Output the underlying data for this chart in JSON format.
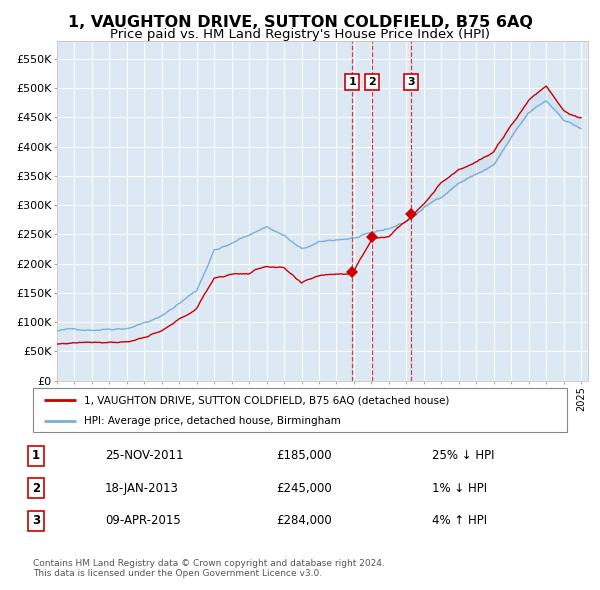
{
  "title": "1, VAUGHTON DRIVE, SUTTON COLDFIELD, B75 6AQ",
  "subtitle": "Price paid vs. HM Land Registry's House Price Index (HPI)",
  "title_fontsize": 11.5,
  "subtitle_fontsize": 9.5,
  "background_color": "#ffffff",
  "plot_bg_color": "#dce9f5",
  "grid_color": "#ffffff",
  "red_line_color": "#cc0000",
  "blue_line_color": "#7bafd4",
  "sale_marker_color": "#cc0000",
  "dashed_line_color": "#cc0000",
  "ylim": [
    0,
    580000
  ],
  "yticks": [
    0,
    50000,
    100000,
    150000,
    200000,
    250000,
    300000,
    350000,
    400000,
    450000,
    500000,
    550000
  ],
  "ytick_labels": [
    "£0",
    "£50K",
    "£100K",
    "£150K",
    "£200K",
    "£250K",
    "£300K",
    "£350K",
    "£400K",
    "£450K",
    "£500K",
    "£550K"
  ],
  "sale_dates": [
    2011.9,
    2013.05,
    2015.27
  ],
  "sale_prices": [
    185000,
    245000,
    284000
  ],
  "sale_labels": [
    "1",
    "2",
    "3"
  ],
  "footer_text": "Contains HM Land Registry data © Crown copyright and database right 2024.\nThis data is licensed under the Open Government Licence v3.0.",
  "legend_entry1": "1, VAUGHTON DRIVE, SUTTON COLDFIELD, B75 6AQ (detached house)",
  "legend_entry2": "HPI: Average price, detached house, Birmingham",
  "table_data": [
    [
      "1",
      "25-NOV-2011",
      "£185,000",
      "25% ↓ HPI"
    ],
    [
      "2",
      "18-JAN-2013",
      "£245,000",
      "1% ↓ HPI"
    ],
    [
      "3",
      "09-APR-2015",
      "£284,000",
      "4% ↑ HPI"
    ]
  ],
  "hpi_key_years": [
    1995,
    1997,
    1999,
    2001,
    2003,
    2004,
    2005,
    2007,
    2008,
    2009,
    2010,
    2012,
    2013,
    2014,
    2015,
    2016,
    2017,
    2018,
    2019,
    2020,
    2021,
    2022,
    2023,
    2024,
    2025
  ],
  "hpi_key_vals": [
    85000,
    88000,
    95000,
    115000,
    160000,
    230000,
    240000,
    270000,
    255000,
    230000,
    240000,
    248000,
    252000,
    260000,
    272000,
    295000,
    315000,
    340000,
    355000,
    370000,
    415000,
    455000,
    475000,
    445000,
    430000
  ],
  "price_key_years": [
    1995,
    1997,
    1999,
    2001,
    2003,
    2004,
    2005,
    2006,
    2007,
    2008,
    2009,
    2010,
    2011,
    2011.9,
    2013.05,
    2014,
    2015.27,
    2016,
    2017,
    2018,
    2019,
    2020,
    2021,
    2022,
    2023,
    2024,
    2025
  ],
  "price_key_vals": [
    62000,
    68000,
    72000,
    88000,
    125000,
    178000,
    185000,
    187000,
    200000,
    195000,
    165000,
    178000,
    182000,
    185000,
    245000,
    250000,
    284000,
    310000,
    345000,
    370000,
    385000,
    400000,
    445000,
    490000,
    515000,
    475000,
    460000
  ]
}
